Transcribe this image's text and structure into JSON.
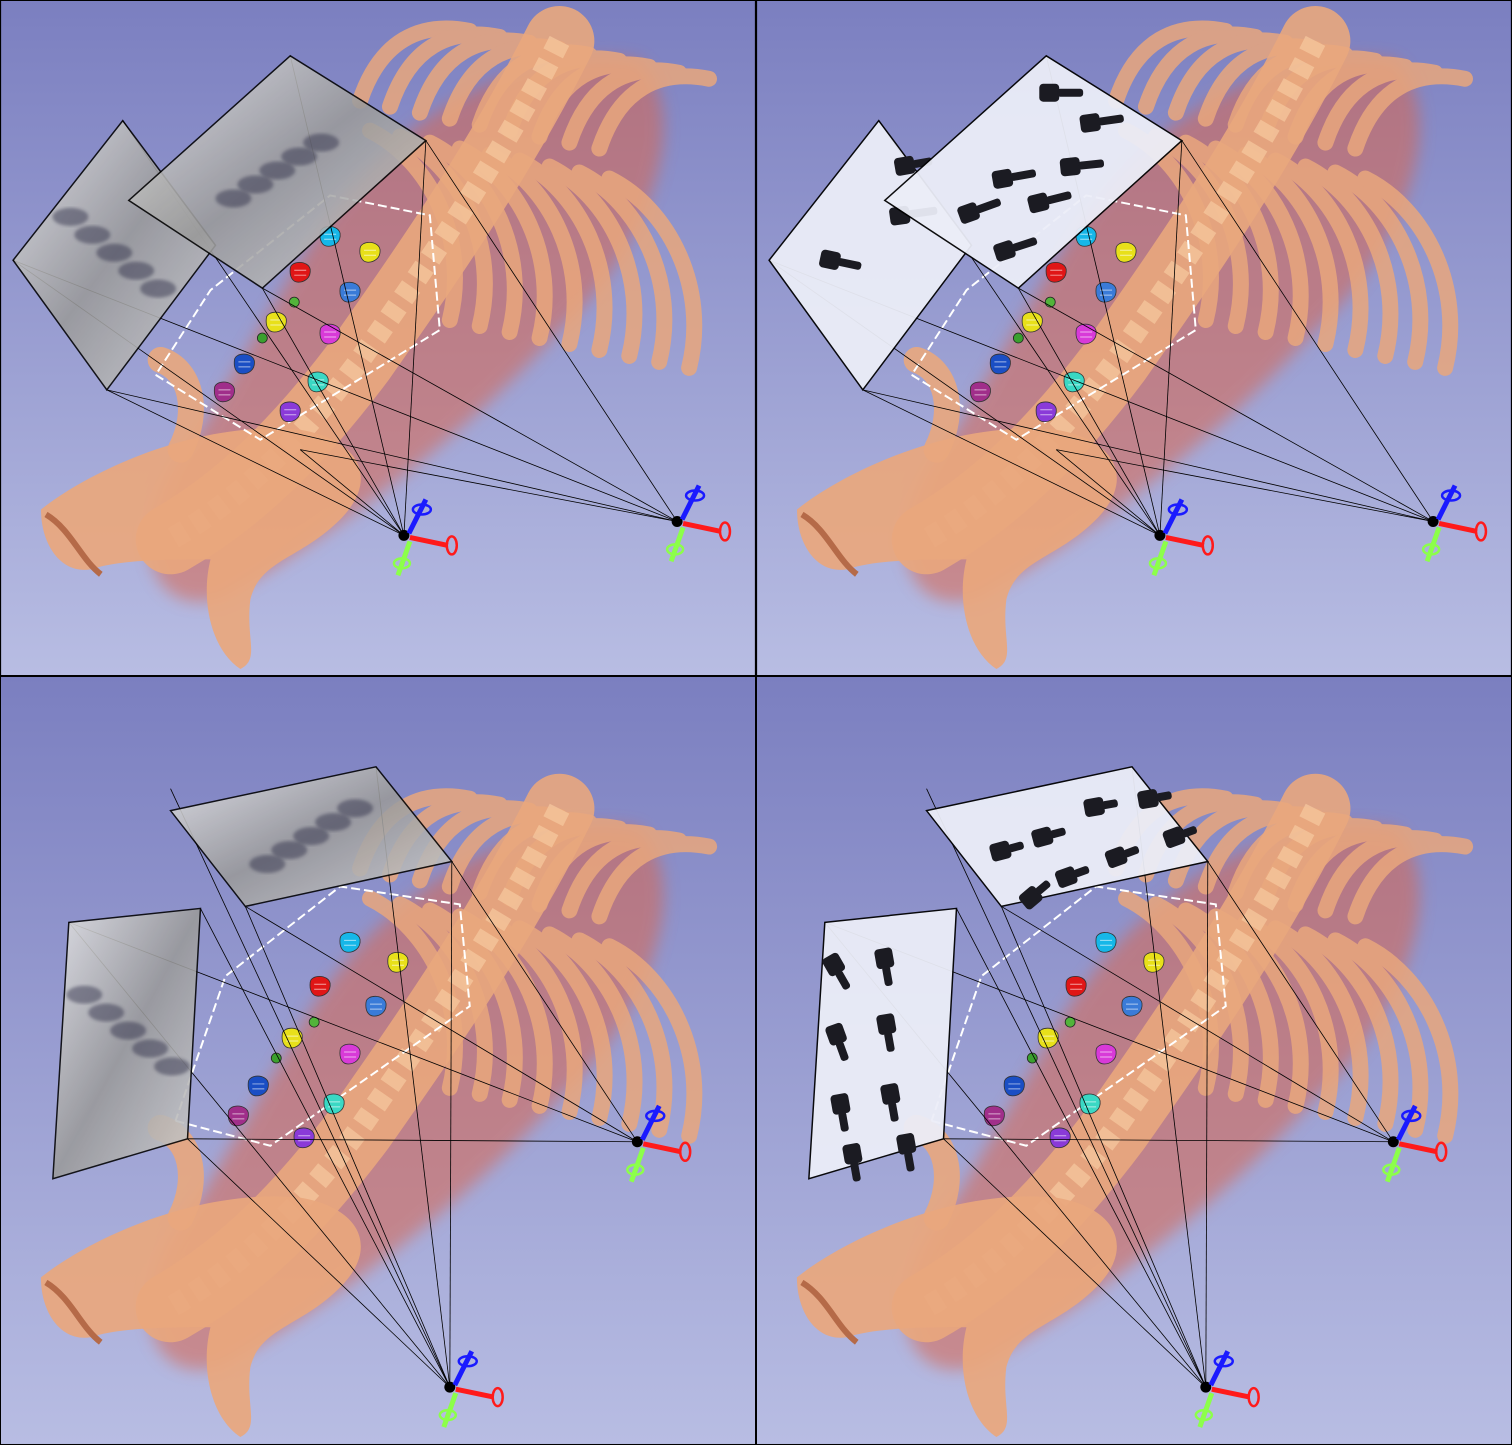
{
  "title": "",
  "layout": {
    "rows": 2,
    "columns": 2
  },
  "colors": {
    "background_top": "#7b7fc0",
    "background_bottom": "#b8bde3",
    "bone": "#e9a77d",
    "bone_glow": "#d9664f",
    "projection_lines": "#000000",
    "frustum_box": "#ffffff",
    "axis_x": "#ff1a1a",
    "axis_y": "#8cff4a",
    "axis_z": "#1a1aff"
  },
  "vertebra_marker_colors": [
    "#16b7e8",
    "#e8e01a",
    "#e01616",
    "#3a7bd8",
    "#52b43a",
    "#d83ad8",
    "#e8e01a",
    "#3aa02e",
    "#1a4ec4",
    "#3ad8c4",
    "#a02e8a",
    "#8a3ad8"
  ],
  "panels": [
    {
      "id": "top-left",
      "image_overlay": "radiograph",
      "rows": "top"
    },
    {
      "id": "top-right",
      "image_overlay": "screw-masks",
      "rows": "top"
    },
    {
      "id": "bottom-left",
      "image_overlay": "radiograph",
      "rows": "bottom"
    },
    {
      "id": "bottom-right",
      "image_overlay": "screw-masks",
      "rows": "bottom"
    }
  ]
}
